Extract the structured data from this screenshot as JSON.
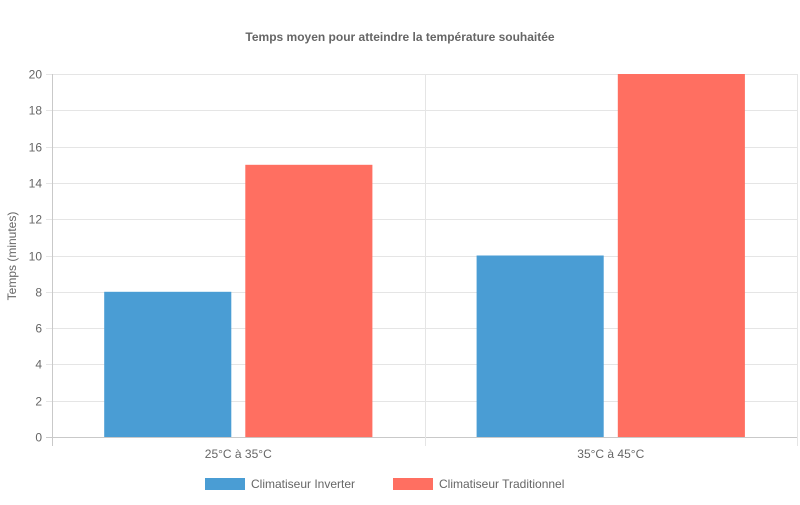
{
  "chart_data": {
    "type": "bar",
    "title": "Temps moyen pour atteindre la température souhaitée",
    "xlabel": "",
    "ylabel": "Temps (minutes)",
    "categories": [
      "25°C à 35°C",
      "35°C à 45°C"
    ],
    "series": [
      {
        "name": "Climatiseur Inverter",
        "values": [
          8,
          10
        ],
        "color": "#4a9dd4"
      },
      {
        "name": "Climatiseur Traditionnel",
        "values": [
          15,
          20
        ],
        "color": "#ff6f61"
      }
    ],
    "ylim": [
      0,
      20
    ],
    "yticks": [
      0,
      2,
      4,
      6,
      8,
      10,
      12,
      14,
      16,
      18,
      20
    ],
    "grid": true,
    "legend_position": "bottom"
  }
}
